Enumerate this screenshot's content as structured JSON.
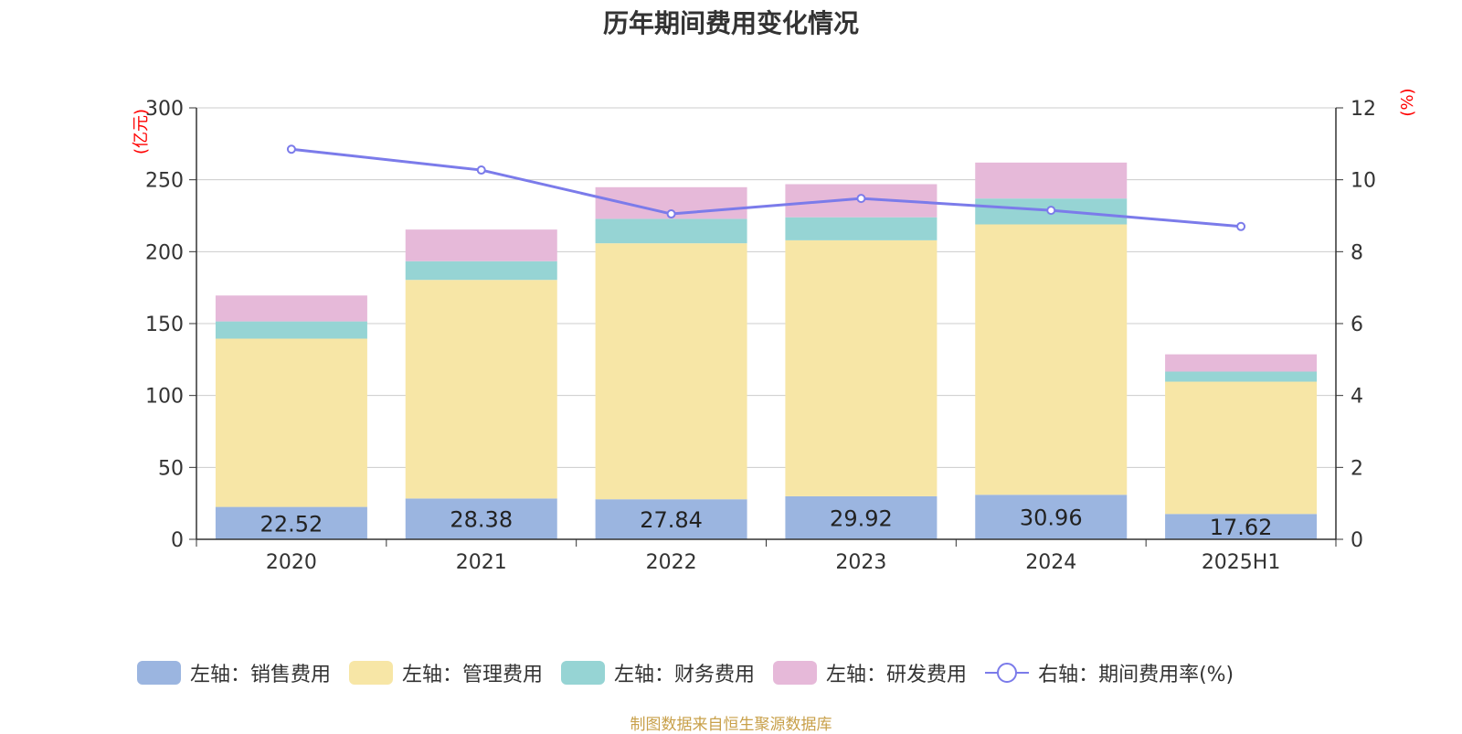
{
  "chart_data": {
    "type": "bar",
    "title": "历年期间费用变化情况",
    "categories": [
      "2020",
      "2021",
      "2022",
      "2023",
      "2024",
      "2025H1"
    ],
    "y_left_unit": "(亿元)",
    "y_right_unit": "(%)",
    "y_left_range": [
      0,
      300
    ],
    "y_left_ticks": [
      0,
      50,
      100,
      150,
      200,
      250,
      300
    ],
    "y_right_range": [
      0,
      12
    ],
    "y_right_ticks": [
      0,
      2,
      4,
      6,
      8,
      10,
      12
    ],
    "grid": true,
    "stacked": true,
    "series": [
      {
        "name": "左轴：销售费用",
        "axis": "left",
        "type": "bar",
        "color": "#9bb5e0",
        "values": [
          22.52,
          28.38,
          27.84,
          29.92,
          30.96,
          17.62
        ],
        "labels_shown": true
      },
      {
        "name": "左轴：管理费用",
        "axis": "left",
        "type": "bar",
        "color": "#f7e6a6",
        "values": [
          117,
          152,
          178,
          178,
          188,
          92
        ]
      },
      {
        "name": "左轴：财务费用",
        "axis": "left",
        "type": "bar",
        "color": "#96d4d4",
        "values": [
          12,
          13,
          17,
          16,
          18,
          7
        ]
      },
      {
        "name": "左轴：研发费用",
        "axis": "left",
        "type": "bar",
        "color": "#e6b9d9",
        "values": [
          18,
          22,
          22,
          23,
          25,
          12
        ]
      },
      {
        "name": "右轴：期间费用率(%)",
        "axis": "right",
        "type": "line",
        "color": "#7b7bea",
        "values": [
          10.85,
          10.27,
          9.05,
          9.48,
          9.15,
          8.7
        ]
      }
    ],
    "legend_position": "bottom"
  },
  "footer": {
    "source_note": "制图数据来自恒生聚源数据库"
  }
}
